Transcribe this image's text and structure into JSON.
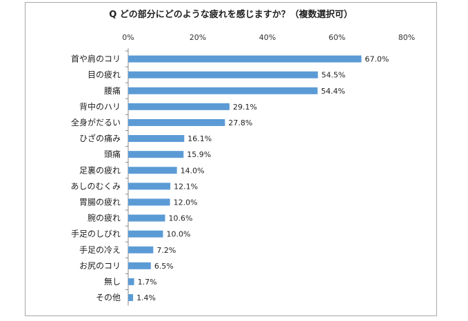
{
  "chart_data": {
    "type": "bar",
    "orientation": "horizontal",
    "title": "Q どの部分にどのような疲れを感じますか？（複数選択可）",
    "xlabel": "",
    "ylabel": "",
    "xlim": [
      0,
      80
    ],
    "x_ticks": [
      "0%",
      "20%",
      "40%",
      "60%",
      "80%"
    ],
    "x_tick_values": [
      0,
      20,
      40,
      60,
      80
    ],
    "x_axis_position": "top",
    "grid": false,
    "legend": "none",
    "bar_color": "#5b9bd5",
    "categories": [
      "首や肩のコリ",
      "目の疲れ",
      "腰痛",
      "背中のハリ",
      "全身がだるい",
      "ひざの痛み",
      "頭痛",
      "足裏の疲れ",
      "あしのむくみ",
      "胃腸の疲れ",
      "腕の疲れ",
      "手足のしびれ",
      "手足の冷え",
      "お尻のコリ",
      "無し",
      "その他"
    ],
    "values": [
      67.0,
      54.5,
      54.4,
      29.1,
      27.8,
      16.1,
      15.9,
      14.0,
      12.1,
      12.0,
      10.6,
      10.0,
      7.2,
      6.5,
      1.7,
      1.4
    ],
    "value_labels": [
      "67.0%",
      "54.5%",
      "54.4%",
      "29.1%",
      "27.8%",
      "16.1%",
      "15.9%",
      "14.0%",
      "12.1%",
      "12.0%",
      "10.6%",
      "10.0%",
      "7.2%",
      "6.5%",
      "1.7%",
      "1.4%"
    ]
  }
}
